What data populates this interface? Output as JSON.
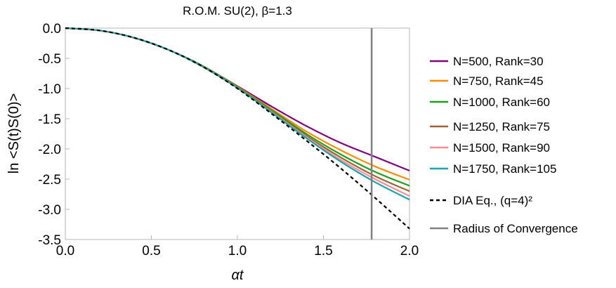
{
  "chart_data": {
    "type": "line",
    "title": "R.O.M. SU(2), β=1.3",
    "xlabel": "αt",
    "ylabel": "ln <S(t)S(0)>",
    "xlim": [
      0,
      2
    ],
    "ylim": [
      -3.5,
      0
    ],
    "x_ticks": [
      "0.0",
      "0.5",
      "1.0",
      "1.5",
      "2.0"
    ],
    "y_ticks": [
      "0.0",
      "-0.5",
      "-1.0",
      "-1.5",
      "-2.0",
      "-2.5",
      "-3.0",
      "-3.5"
    ],
    "grid": false,
    "legend_position": "right",
    "series": [
      {
        "name": "N=500, Rank=30",
        "color": "#800080",
        "style": "solid",
        "x": [
          0,
          0.2,
          0.4,
          0.6,
          0.8,
          1.0,
          1.2,
          1.4,
          1.6,
          1.8,
          2.0
        ],
        "y": [
          0,
          -0.04,
          -0.16,
          -0.36,
          -0.63,
          -0.96,
          -1.3,
          -1.62,
          -1.9,
          -2.13,
          -2.36
        ]
      },
      {
        "name": "N=750, Rank=45",
        "color": "#ff8c00",
        "style": "solid",
        "x": [
          0,
          0.2,
          0.4,
          0.6,
          0.8,
          1.0,
          1.2,
          1.4,
          1.6,
          1.8,
          2.0
        ],
        "y": [
          0,
          -0.04,
          -0.16,
          -0.36,
          -0.63,
          -0.97,
          -1.34,
          -1.71,
          -2.02,
          -2.29,
          -2.51
        ]
      },
      {
        "name": "N=1000, Rank=60",
        "color": "#1aa11a",
        "style": "solid",
        "x": [
          0,
          0.2,
          0.4,
          0.6,
          0.8,
          1.0,
          1.2,
          1.4,
          1.6,
          1.8,
          2.0
        ],
        "y": [
          0,
          -0.04,
          -0.16,
          -0.36,
          -0.63,
          -0.98,
          -1.36,
          -1.75,
          -2.09,
          -2.38,
          -2.61
        ]
      },
      {
        "name": "N=1250, Rank=75",
        "color": "#996633",
        "style": "solid",
        "x": [
          0,
          0.2,
          0.4,
          0.6,
          0.8,
          1.0,
          1.2,
          1.4,
          1.6,
          1.8,
          2.0
        ],
        "y": [
          0,
          -0.04,
          -0.16,
          -0.36,
          -0.64,
          -0.99,
          -1.38,
          -1.78,
          -2.14,
          -2.45,
          -2.7
        ]
      },
      {
        "name": "N=1500, Rank=90",
        "color": "#ff8c94",
        "style": "solid",
        "x": [
          0,
          0.2,
          0.4,
          0.6,
          0.8,
          1.0,
          1.2,
          1.4,
          1.6,
          1.8,
          2.0
        ],
        "y": [
          0,
          -0.04,
          -0.16,
          -0.36,
          -0.64,
          -0.99,
          -1.39,
          -1.8,
          -2.18,
          -2.5,
          -2.78
        ]
      },
      {
        "name": "N=1750, Rank=105",
        "color": "#14a5b0",
        "style": "solid",
        "x": [
          0,
          0.2,
          0.4,
          0.6,
          0.8,
          1.0,
          1.2,
          1.4,
          1.6,
          1.8,
          2.0
        ],
        "y": [
          0,
          -0.04,
          -0.16,
          -0.36,
          -0.64,
          -0.99,
          -1.4,
          -1.82,
          -2.21,
          -2.55,
          -2.84
        ]
      },
      {
        "name": "DIA Eq., (q=4)²",
        "color": "#000000",
        "style": "dashed",
        "x": [
          0,
          0.2,
          0.4,
          0.6,
          0.8,
          1.0,
          1.2,
          1.4,
          1.6,
          1.8,
          2.0
        ],
        "y": [
          0,
          -0.04,
          -0.16,
          -0.36,
          -0.64,
          -1.0,
          -1.42,
          -1.86,
          -2.32,
          -2.81,
          -3.32
        ]
      }
    ],
    "vertical_line": {
      "name": "Radius of Convergence",
      "x": 1.78,
      "color": "#808080"
    }
  }
}
